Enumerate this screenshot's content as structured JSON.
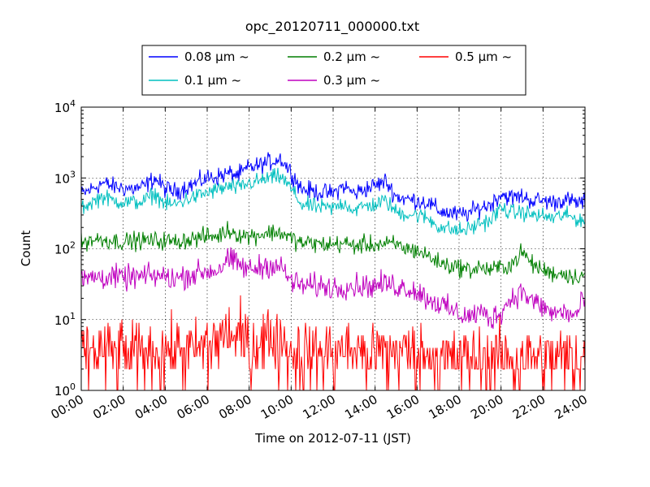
{
  "chart_data": {
    "type": "line",
    "title": "opc_20120711_000000.txt",
    "xlabel": "Time on 2012-07-11 (JST)",
    "ylabel": "Count",
    "yscale": "log",
    "ylim": [
      1,
      10000
    ],
    "xlim": [
      "00:00",
      "24:00"
    ],
    "y_ticks": [
      {
        "base": "10",
        "exp": "0"
      },
      {
        "base": "10",
        "exp": "1"
      },
      {
        "base": "10",
        "exp": "2"
      },
      {
        "base": "10",
        "exp": "3"
      },
      {
        "base": "10",
        "exp": "4"
      }
    ],
    "x_ticks": [
      "00:00",
      "02:00",
      "04:00",
      "06:00",
      "08:00",
      "10:00",
      "12:00",
      "14:00",
      "16:00",
      "18:00",
      "20:00",
      "22:00",
      "24:00"
    ],
    "grid": true,
    "legend_position": "top",
    "x_hours": [
      0,
      0.5,
      1,
      1.5,
      2,
      2.5,
      3,
      3.5,
      4,
      4.5,
      5,
      5.5,
      6,
      6.5,
      7,
      7.5,
      8,
      8.5,
      9,
      9.5,
      10,
      10.5,
      11,
      11.5,
      12,
      12.5,
      13,
      13.5,
      14,
      14.5,
      15,
      15.5,
      16,
      16.5,
      17,
      17.5,
      18,
      18.5,
      19,
      19.5,
      20,
      20.5,
      21,
      21.5,
      22,
      22.5,
      23,
      23.5,
      24
    ],
    "series": [
      {
        "name": "0.08 μm ~",
        "color": "#0000ff",
        "noise": 0.22,
        "values": [
          580,
          700,
          850,
          760,
          720,
          700,
          750,
          1000,
          700,
          640,
          750,
          850,
          1000,
          1050,
          1150,
          1100,
          1400,
          1500,
          1700,
          1900,
          1200,
          700,
          650,
          620,
          600,
          780,
          600,
          700,
          780,
          900,
          550,
          500,
          480,
          450,
          350,
          320,
          300,
          320,
          380,
          420,
          600,
          520,
          550,
          480,
          480,
          450,
          500,
          450,
          450
        ]
      },
      {
        "name": "0.1 μm ~",
        "color": "#00bfbf",
        "noise": 0.2,
        "values": [
          380,
          450,
          550,
          480,
          460,
          450,
          470,
          600,
          430,
          420,
          500,
          550,
          620,
          680,
          750,
          720,
          850,
          900,
          1000,
          1050,
          700,
          420,
          400,
          380,
          370,
          450,
          350,
          400,
          420,
          480,
          330,
          310,
          300,
          270,
          210,
          190,
          180,
          190,
          230,
          250,
          380,
          320,
          330,
          300,
          290,
          270,
          300,
          270,
          250
        ]
      },
      {
        "name": "0.2 μm ~",
        "color": "#007f00",
        "noise": 0.22,
        "values": [
          120,
          135,
          135,
          130,
          125,
          130,
          130,
          130,
          130,
          125,
          135,
          140,
          150,
          150,
          185,
          160,
          150,
          160,
          170,
          170,
          140,
          120,
          120,
          115,
          115,
          120,
          110,
          115,
          115,
          115,
          115,
          100,
          95,
          80,
          65,
          58,
          55,
          50,
          55,
          50,
          55,
          60,
          90,
          60,
          50,
          45,
          45,
          40,
          45
        ]
      },
      {
        "name": "0.3 μm ~",
        "color": "#bf00bf",
        "noise": 0.3,
        "values": [
          35,
          40,
          40,
          40,
          38,
          40,
          40,
          42,
          40,
          38,
          42,
          45,
          48,
          50,
          70,
          60,
          50,
          55,
          60,
          55,
          35,
          30,
          30,
          30,
          28,
          30,
          30,
          30,
          30,
          32,
          30,
          28,
          25,
          20,
          17,
          14,
          12,
          11,
          13,
          10,
          13,
          20,
          25,
          18,
          15,
          12,
          13,
          11,
          20
        ]
      },
      {
        "name": "0.5 μm ~",
        "color": "#ff0000",
        "noise": 0.55,
        "values": [
          3,
          3,
          3,
          3,
          3,
          3,
          3,
          3,
          3,
          3,
          3,
          3,
          4,
          5,
          6,
          5,
          4,
          5,
          5,
          4,
          3,
          3,
          3,
          3,
          3,
          3,
          3,
          3,
          3,
          3,
          3,
          3,
          3,
          3,
          2.5,
          2.5,
          2.5,
          2.5,
          2.5,
          2.5,
          2.5,
          2.5,
          2.5,
          2.5,
          2.5,
          2.5,
          2.5,
          2.5,
          2.5
        ]
      }
    ]
  }
}
